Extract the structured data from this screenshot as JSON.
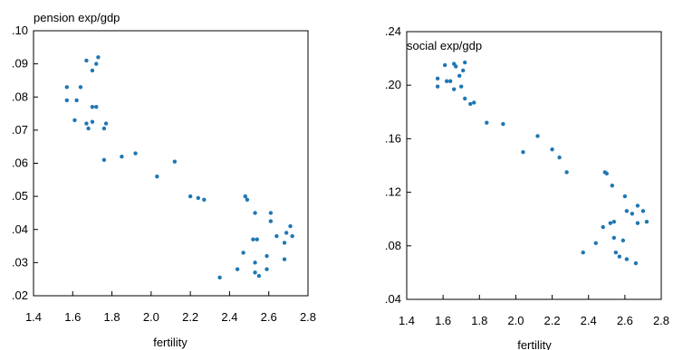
{
  "chart_data": [
    {
      "type": "scatter",
      "title": "pension exp/gdp",
      "xlabel": "fertility",
      "ylabel": "",
      "xlim": [
        1.4,
        2.8
      ],
      "ylim": [
        0.02,
        0.1
      ],
      "xticks": [
        "1.4",
        "1.6",
        "1.8",
        "2.0",
        "2.2",
        "2.4",
        "2.6",
        "2.8"
      ],
      "yticks": [
        ".02",
        ".03",
        ".04",
        ".05",
        ".06",
        ".07",
        ".08",
        ".09",
        ".10"
      ],
      "color": "#1f77b4",
      "grid": false,
      "points": [
        [
          1.57,
          0.083
        ],
        [
          1.57,
          0.079
        ],
        [
          1.62,
          0.079
        ],
        [
          1.64,
          0.083
        ],
        [
          1.67,
          0.091
        ],
        [
          1.7,
          0.088
        ],
        [
          1.72,
          0.09
        ],
        [
          1.73,
          0.092
        ],
        [
          1.61,
          0.073
        ],
        [
          1.67,
          0.072
        ],
        [
          1.68,
          0.0705
        ],
        [
          1.7,
          0.0725
        ],
        [
          1.7,
          0.077
        ],
        [
          1.72,
          0.077
        ],
        [
          1.76,
          0.0705
        ],
        [
          1.77,
          0.072
        ],
        [
          1.76,
          0.061
        ],
        [
          1.85,
          0.062
        ],
        [
          1.92,
          0.063
        ],
        [
          2.03,
          0.056
        ],
        [
          2.12,
          0.0605
        ],
        [
          2.2,
          0.05
        ],
        [
          2.24,
          0.0495
        ],
        [
          2.27,
          0.049
        ],
        [
          2.48,
          0.05
        ],
        [
          2.49,
          0.049
        ],
        [
          2.53,
          0.045
        ],
        [
          2.61,
          0.045
        ],
        [
          2.61,
          0.0425
        ],
        [
          2.52,
          0.037
        ],
        [
          2.54,
          0.037
        ],
        [
          2.64,
          0.038
        ],
        [
          2.69,
          0.039
        ],
        [
          2.71,
          0.041
        ],
        [
          2.72,
          0.038
        ],
        [
          2.68,
          0.036
        ],
        [
          2.47,
          0.033
        ],
        [
          2.59,
          0.032
        ],
        [
          2.68,
          0.031
        ],
        [
          2.53,
          0.03
        ],
        [
          2.44,
          0.028
        ],
        [
          2.53,
          0.027
        ],
        [
          2.59,
          0.028
        ],
        [
          2.55,
          0.026
        ],
        [
          2.35,
          0.0255
        ]
      ]
    },
    {
      "type": "scatter",
      "title": "social exp/gdp",
      "xlabel": "fertility",
      "ylabel": "",
      "xlim": [
        1.4,
        2.8
      ],
      "ylim": [
        0.04,
        0.24
      ],
      "xticks": [
        "1.4",
        "1.6",
        "1.8",
        "2.0",
        "2.2",
        "2.4",
        "2.6",
        "2.8"
      ],
      "yticks": [
        ".04",
        ".08",
        ".12",
        ".16",
        ".20",
        ".24"
      ],
      "color": "#1f77b4",
      "grid": false,
      "points": [
        [
          1.57,
          0.205
        ],
        [
          1.57,
          0.199
        ],
        [
          1.61,
          0.215
        ],
        [
          1.62,
          0.203
        ],
        [
          1.64,
          0.203
        ],
        [
          1.66,
          0.216
        ],
        [
          1.67,
          0.214
        ],
        [
          1.66,
          0.197
        ],
        [
          1.69,
          0.207
        ],
        [
          1.7,
          0.199
        ],
        [
          1.71,
          0.211
        ],
        [
          1.72,
          0.217
        ],
        [
          1.72,
          0.19
        ],
        [
          1.75,
          0.186
        ],
        [
          1.77,
          0.187
        ],
        [
          1.84,
          0.172
        ],
        [
          1.93,
          0.171
        ],
        [
          2.04,
          0.15
        ],
        [
          2.12,
          0.162
        ],
        [
          2.2,
          0.152
        ],
        [
          2.24,
          0.146
        ],
        [
          2.28,
          0.135
        ],
        [
          2.49,
          0.135
        ],
        [
          2.5,
          0.134
        ],
        [
          2.53,
          0.125
        ],
        [
          2.6,
          0.117
        ],
        [
          2.67,
          0.11
        ],
        [
          2.7,
          0.106
        ],
        [
          2.72,
          0.098
        ],
        [
          2.61,
          0.106
        ],
        [
          2.64,
          0.104
        ],
        [
          2.67,
          0.097
        ],
        [
          2.52,
          0.097
        ],
        [
          2.54,
          0.098
        ],
        [
          2.48,
          0.094
        ],
        [
          2.44,
          0.082
        ],
        [
          2.54,
          0.086
        ],
        [
          2.59,
          0.084
        ],
        [
          2.37,
          0.075
        ],
        [
          2.55,
          0.075
        ],
        [
          2.57,
          0.072
        ],
        [
          2.61,
          0.07
        ],
        [
          2.66,
          0.067
        ]
      ]
    }
  ]
}
